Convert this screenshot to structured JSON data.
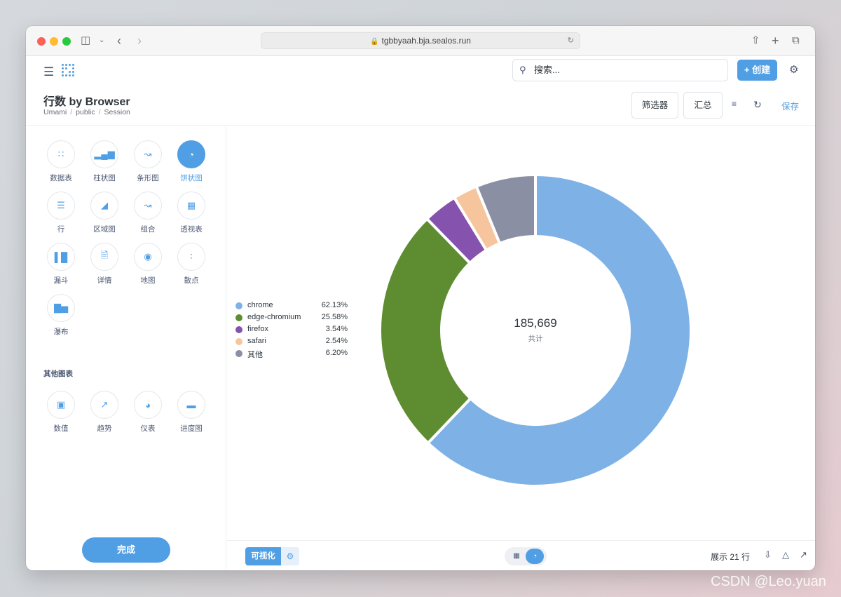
{
  "browser": {
    "url": "tgbbyaah.bja.sealos.run"
  },
  "header": {
    "search_placeholder": "搜索...",
    "create_label": "创建"
  },
  "question": {
    "title": "行数 by Browser",
    "breadcrumb": [
      "Umami",
      "public",
      "Session"
    ],
    "filter_label": "筛选器",
    "summarize_label": "汇总",
    "save_label": "保存"
  },
  "sidebar": {
    "chart_types": [
      {
        "label": "数据表",
        "icon": "grid-icon",
        "active": false
      },
      {
        "label": "柱状图",
        "icon": "bar-chart-icon",
        "active": false
      },
      {
        "label": "条形图",
        "icon": "line-chart-icon",
        "active": false
      },
      {
        "label": "饼状图",
        "icon": "pie-chart-icon",
        "active": true
      },
      {
        "label": "行",
        "icon": "row-chart-icon",
        "active": false
      },
      {
        "label": "区域图",
        "icon": "area-chart-icon",
        "active": false
      },
      {
        "label": "组合",
        "icon": "combo-chart-icon",
        "active": false
      },
      {
        "label": "透视表",
        "icon": "pivot-table-icon",
        "active": false
      },
      {
        "label": "漏斗",
        "icon": "funnel-icon",
        "active": false
      },
      {
        "label": "详情",
        "icon": "document-icon",
        "active": false
      },
      {
        "label": "地图",
        "icon": "map-pin-icon",
        "active": false
      },
      {
        "label": "散点",
        "icon": "scatter-icon",
        "active": false
      },
      {
        "label": "瀑布",
        "icon": "waterfall-icon",
        "active": false
      }
    ],
    "other_heading": "其他图表",
    "other_types": [
      {
        "label": "数值",
        "icon": "number-icon"
      },
      {
        "label": "趋势",
        "icon": "trend-icon"
      },
      {
        "label": "仪表",
        "icon": "gauge-icon"
      },
      {
        "label": "进度图",
        "icon": "progress-icon"
      }
    ],
    "done_label": "完成"
  },
  "chart_data": {
    "type": "pie",
    "total_label": "共计",
    "total_value": "185,669",
    "categories": [
      "chrome",
      "edge-chromium",
      "firefox",
      "safari",
      "其他"
    ],
    "percent_labels": [
      "62.13%",
      "25.58%",
      "3.54%",
      "2.54%",
      "6.20%"
    ],
    "values": [
      62.13,
      25.58,
      3.54,
      2.54,
      6.2
    ],
    "colors": [
      "#7eb2e6",
      "#5e8d31",
      "#8553ae",
      "#f6c59e",
      "#8a8fa3"
    ]
  },
  "footer": {
    "viz_label": "可视化",
    "rows_label": "展示 21 行"
  },
  "watermark": "CSDN @Leo.yuan"
}
